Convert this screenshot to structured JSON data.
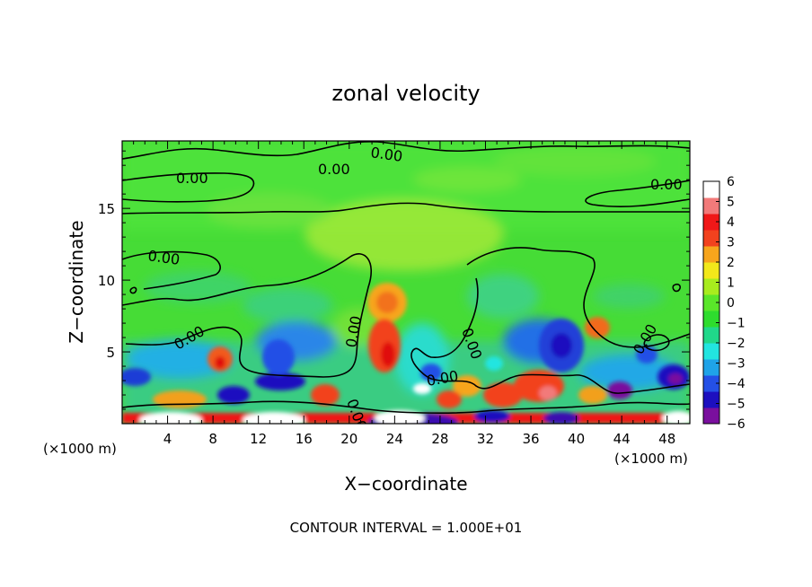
{
  "chart_data": {
    "type": "heatmap",
    "title": "zonal velocity",
    "xlabel": "X−coordinate",
    "ylabel": "Z−coordinate",
    "x_unit_left": "(×1000 m)",
    "x_unit_right": "(×1000 m)",
    "footer": "CONTOUR INTERVAL = 1.000E+01",
    "xlim": [
      0,
      50
    ],
    "ylim": [
      0,
      19.7
    ],
    "x_ticks": [
      4,
      8,
      12,
      16,
      20,
      24,
      28,
      32,
      36,
      40,
      44,
      48
    ],
    "y_ticks": [
      5,
      10,
      15
    ],
    "contour_labels": [
      "0.00",
      "0.00",
      "0.00",
      "0.00",
      "0.00",
      "0.00",
      "0.00",
      "0.00",
      "0.00",
      "0.00",
      "0.00"
    ],
    "colorbar": {
      "min": -6,
      "max": 6,
      "ticks": [
        6,
        5,
        4,
        3,
        2,
        1,
        0,
        -1,
        -2,
        -3,
        -4,
        -5,
        -6
      ],
      "tick_labels": [
        "6",
        "5",
        "4",
        "3",
        "2",
        "1",
        "0",
        "−1",
        "−2",
        "−3",
        "−4",
        "−5",
        "−6"
      ],
      "colors": [
        "#7a0f9e",
        "#1d0fbf",
        "#2450e6",
        "#1fa3e8",
        "#22e5e0",
        "#20d88a",
        "#2edc2e",
        "#5ae62a",
        "#a8ec1e",
        "#f2e81a",
        "#f7a51c",
        "#f2421e",
        "#f01818",
        "#f27a7a",
        "#ffffff"
      ]
    },
    "features": [
      {
        "x": 24,
        "z": 7.8,
        "value": 3.5
      },
      {
        "x": 23.5,
        "z": 4.8,
        "value": 4.5
      },
      {
        "x": 9,
        "z": 4.2,
        "value": 4
      },
      {
        "x": 37,
        "z": 2.5,
        "value": 4.5
      },
      {
        "x": 40.5,
        "z": 6.5,
        "value": 3
      },
      {
        "x": 30,
        "z": 2.5,
        "value": 4
      },
      {
        "x": 26,
        "z": 2.2,
        "value": 6
      },
      {
        "x": 24.5,
        "z": 1.0,
        "value": 5
      },
      {
        "x": 14,
        "z": 2.8,
        "value": -4.5
      },
      {
        "x": 11,
        "z": 2.8,
        "value": -4
      },
      {
        "x": 4,
        "z": 3.5,
        "value": -3.5
      },
      {
        "x": 38,
        "z": 5.5,
        "value": -3.5
      },
      {
        "x": 47,
        "z": 3.5,
        "value": -5
      },
      {
        "x": 17,
        "z": 5.8,
        "value": -2.5
      },
      {
        "x": 33,
        "z": 6.5,
        "value": -2
      },
      {
        "x": 25,
        "z": 15,
        "value": 1
      },
      {
        "x": 26,
        "z": 12.5,
        "value": 2
      },
      {
        "x": 4,
        "z": 0.5,
        "value": 6
      },
      {
        "x": 13,
        "z": 0.5,
        "value": 6
      },
      {
        "x": 24,
        "z": 0.4,
        "value": 6
      },
      {
        "x": 47,
        "z": 0.5,
        "value": 6
      }
    ]
  }
}
